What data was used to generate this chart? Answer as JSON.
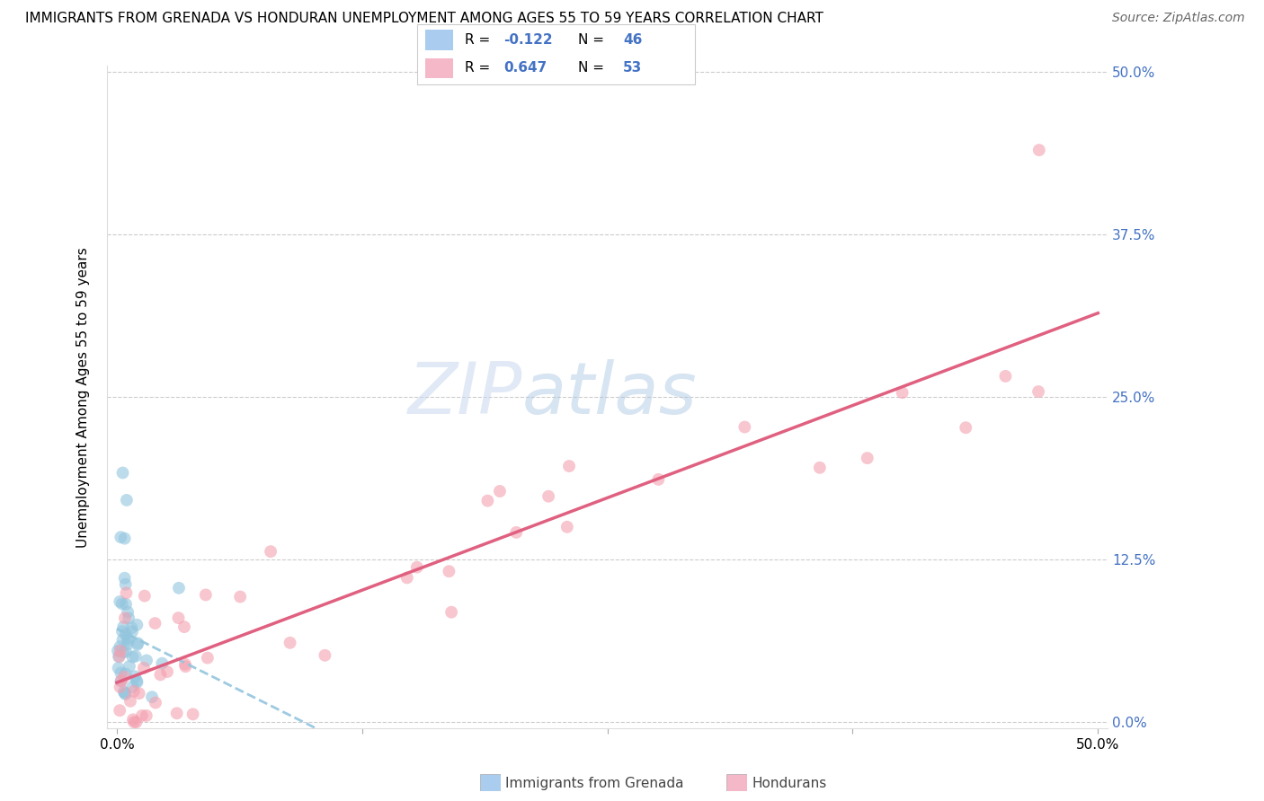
{
  "title": "IMMIGRANTS FROM GRENADA VS HONDURAN UNEMPLOYMENT AMONG AGES 55 TO 59 YEARS CORRELATION CHART",
  "source": "Source: ZipAtlas.com",
  "ylabel": "Unemployment Among Ages 55 to 59 years",
  "watermark_zip": "ZIP",
  "watermark_atlas": "atlas",
  "grenada_color": "#92c5de",
  "honduran_color": "#f4a0b0",
  "grenada_line_color": "#92c5de",
  "honduran_line_color": "#e06080",
  "right_label_color": "#4472c4",
  "grenada_R": -0.122,
  "honduran_R": 0.647,
  "grenada_N": 46,
  "honduran_N": 53,
  "xlim": [
    0.0,
    0.5
  ],
  "ylim": [
    0.0,
    0.5
  ],
  "x_tick_vals": [
    0.0,
    0.125,
    0.25,
    0.375,
    0.5
  ],
  "x_tick_labels_show": [
    "0.0%",
    "",
    "",
    "",
    "50.0%"
  ],
  "y_tick_vals": [
    0.0,
    0.125,
    0.25,
    0.375,
    0.5
  ],
  "y_tick_labels_right": [
    "0.0%",
    "12.5%",
    "25.0%",
    "37.5%",
    "50.0%"
  ],
  "legend_box_color": "#aaccee",
  "legend_box_color2": "#f4b8c8",
  "title_fontsize": 11,
  "source_fontsize": 10,
  "tick_fontsize": 11,
  "legend_fontsize": 11,
  "ylabel_fontsize": 11
}
